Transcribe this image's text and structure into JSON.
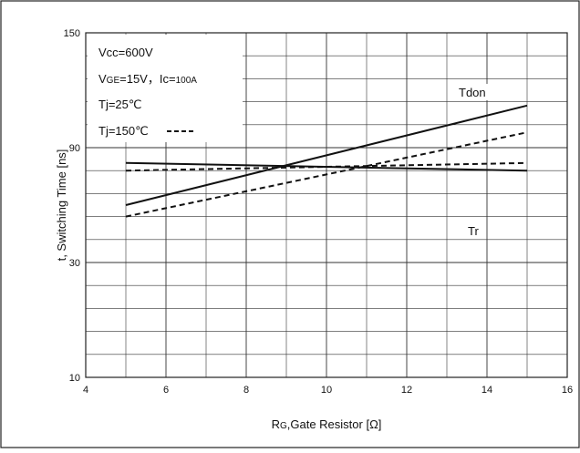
{
  "chart_data": {
    "type": "line",
    "title": "",
    "xlabel_main": "R",
    "xlabel_sub": "G",
    "xlabel_rest": ",Gate Resistor [Ω]",
    "ylabel": "t, Switching Time [ns]",
    "xlim": [
      4,
      16
    ],
    "ylim": [
      10,
      150
    ],
    "x_ticks": [
      "4",
      "6",
      "8",
      "10",
      "12",
      "14",
      "16"
    ],
    "y_ticks": [
      "10",
      "30",
      "90",
      "150"
    ],
    "grid": true,
    "series": [
      {
        "name": "Tdon",
        "temp": "Tj=25℃",
        "style": "solid",
        "x": [
          5,
          15
        ],
        "y": [
          60,
          112
        ]
      },
      {
        "name": "Tdon",
        "temp": "Tj=150℃",
        "style": "dashed",
        "x": [
          5,
          15
        ],
        "y": [
          54,
          98
        ]
      },
      {
        "name": "Tr",
        "temp": "Tj=25℃",
        "style": "solid",
        "x": [
          5,
          15
        ],
        "y": [
          82,
          78
        ]
      },
      {
        "name": "Tr",
        "temp": "Tj=150℃",
        "style": "dashed",
        "x": [
          5,
          15
        ],
        "y": [
          78,
          82
        ]
      }
    ],
    "conditions": {
      "vcc": "Vcc=600V",
      "vge_main": "V",
      "vge_sub": "GE",
      "vge_rest": "=15V，",
      "ic_main": "Ic=",
      "ic_small": "100A",
      "tj25": "Tj=25℃",
      "tj150": "Tj=150℃"
    },
    "series_labels": {
      "tdon": "Tdon",
      "tr": "Tr"
    }
  }
}
